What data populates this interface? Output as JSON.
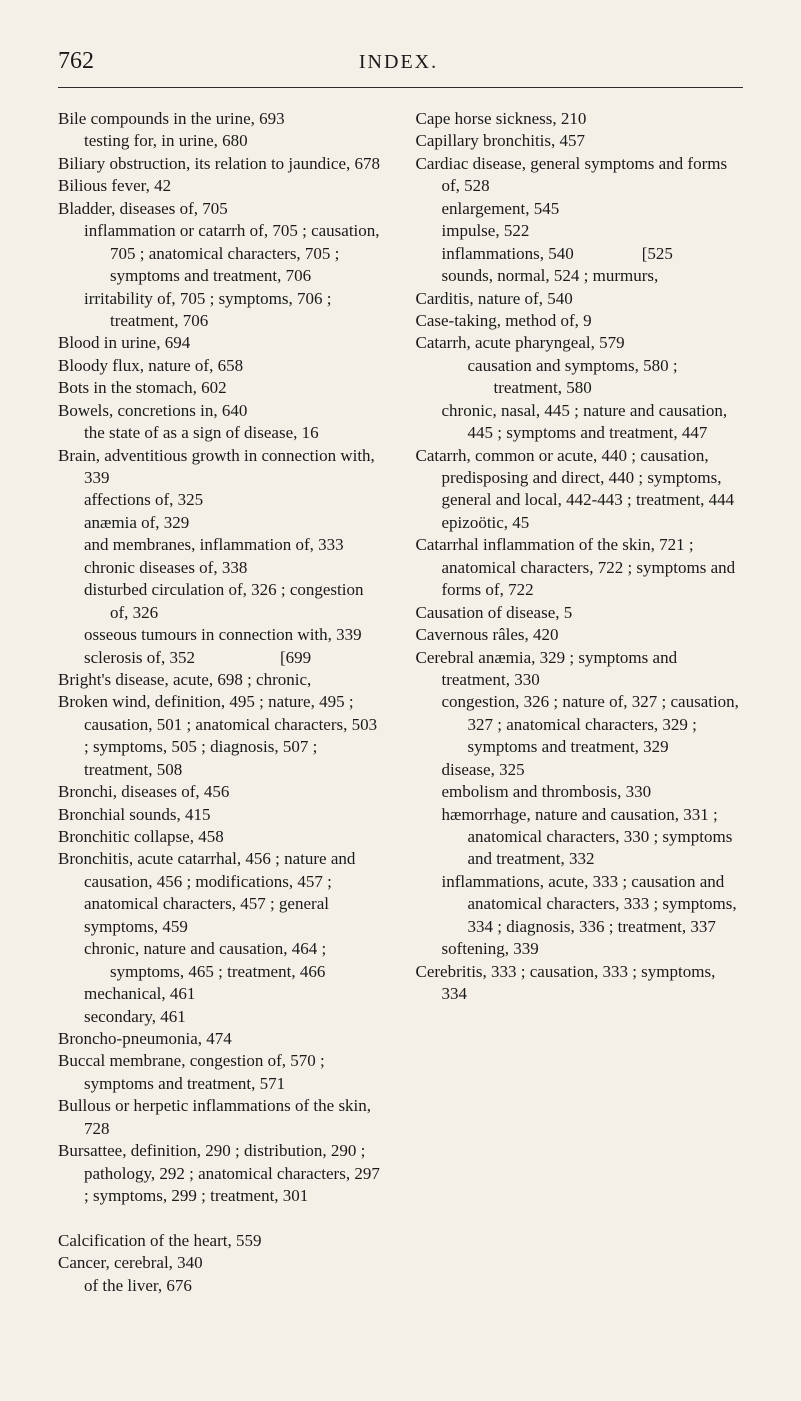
{
  "page": {
    "number": "762",
    "title": "INDEX."
  },
  "entries": [
    {
      "level": 0,
      "text": "Bile compounds in the urine, 693"
    },
    {
      "level": 1,
      "text": "testing for, in urine, 680"
    },
    {
      "level": 0,
      "text": "Biliary obstruction, its relation to jaundice, 678"
    },
    {
      "level": 0,
      "text": "Bilious fever, 42"
    },
    {
      "level": 0,
      "text": "Bladder, diseases of, 705"
    },
    {
      "level": 1,
      "text": "inflammation or catarrh of, 705 ; causation, 705 ; anatomical characters, 705 ; symptoms and treatment, 706"
    },
    {
      "level": 1,
      "text": "irritability of, 705 ; symptoms, 706 ; treatment, 706"
    },
    {
      "level": 0,
      "text": "Blood in urine, 694"
    },
    {
      "level": 0,
      "text": "Bloody flux, nature of, 658"
    },
    {
      "level": 0,
      "text": "Bots in the stomach, 602"
    },
    {
      "level": 0,
      "text": "Bowels, concretions in, 640"
    },
    {
      "level": 1,
      "text": "the state of as a sign of disease, 16"
    },
    {
      "level": 0,
      "text": "Brain, adventitious growth in connection with, 339"
    },
    {
      "level": 1,
      "text": "affections of, 325"
    },
    {
      "level": 1,
      "text": "anæmia of, 329"
    },
    {
      "level": 1,
      "text": "and membranes, inflammation of, 333"
    },
    {
      "level": 1,
      "text": "chronic diseases of, 338"
    },
    {
      "level": 1,
      "text": "disturbed circulation of, 326 ; congestion of, 326"
    },
    {
      "level": 1,
      "text": "osseous tumours in connection with, 339"
    },
    {
      "level": 1,
      "text": "sclerosis of, 352     [699"
    },
    {
      "level": 0,
      "text": "Bright's disease, acute, 698 ; chronic,"
    },
    {
      "level": 0,
      "text": "Broken wind, definition, 495 ; nature, 495 ; causation, 501 ; anatomical characters, 503 ; symptoms, 505 ; diagnosis, 507 ; treatment, 508"
    },
    {
      "level": 0,
      "text": "Bronchi, diseases of, 456"
    },
    {
      "level": 0,
      "text": "Bronchial sounds, 415"
    },
    {
      "level": 0,
      "text": "Bronchitic collapse, 458"
    },
    {
      "level": 0,
      "text": "Bronchitis, acute catarrhal, 456 ; nature and causation, 456 ; modifications, 457 ; anatomical characters, 457 ; general symptoms, 459"
    },
    {
      "level": 1,
      "text": "chronic, nature and causation, 464 ; symptoms, 465 ; treatment, 466"
    },
    {
      "level": 1,
      "text": "mechanical, 461"
    },
    {
      "level": 1,
      "text": "secondary, 461"
    },
    {
      "level": 0,
      "text": "Broncho-pneumonia, 474"
    },
    {
      "level": 0,
      "text": "Buccal membrane, congestion of, 570 ; symptoms and treatment, 571"
    },
    {
      "level": 0,
      "text": "Bullous or herpetic inflammations of the skin, 728"
    },
    {
      "level": 0,
      "text": "Bursattee, definition, 290 ; distribution, 290 ; pathology, 292 ; anatomical characters, 297 ; symptoms, 299 ; treatment, 301"
    },
    {
      "level": 0,
      "text": " "
    },
    {
      "level": 0,
      "text": "Calcification of the heart, 559"
    },
    {
      "level": 0,
      "text": "Cancer, cerebral, 340"
    },
    {
      "level": 1,
      "text": "of the liver, 676"
    },
    {
      "level": 0,
      "text": "Cape horse sickness, 210"
    },
    {
      "level": 0,
      "text": "Capillary bronchitis, 457"
    },
    {
      "level": 0,
      "text": "Cardiac disease, general symptoms and forms of, 528"
    },
    {
      "level": 1,
      "text": "enlargement, 545"
    },
    {
      "level": 1,
      "text": "impulse, 522"
    },
    {
      "level": 1,
      "text": "inflammations, 540    [525"
    },
    {
      "level": 1,
      "text": "sounds, normal, 524 ; murmurs,"
    },
    {
      "level": 0,
      "text": "Carditis, nature of, 540"
    },
    {
      "level": 0,
      "text": "Case-taking, method of, 9"
    },
    {
      "level": 0,
      "text": "Catarrh, acute pharyngeal, 579"
    },
    {
      "level": 2,
      "text": "causation and symptoms, 580 ; treatment, 580"
    },
    {
      "level": 1,
      "text": "chronic, nasal, 445 ; nature and causation, 445 ; symptoms and treatment, 447"
    },
    {
      "level": 0,
      "text": "Catarrh, common or acute, 440 ; causation, predisposing and direct, 440 ; symptoms, general and local, 442-443 ; treatment, 444"
    },
    {
      "level": 1,
      "text": "epizoötic, 45"
    },
    {
      "level": 0,
      "text": "Catarrhal inflammation of the skin, 721 ; anatomical characters, 722 ; symptoms and forms of, 722"
    },
    {
      "level": 0,
      "text": "Causation of disease, 5"
    },
    {
      "level": 0,
      "text": "Cavernous râles, 420"
    },
    {
      "level": 0,
      "text": "Cerebral anæmia, 329 ; symptoms and treatment, 330"
    },
    {
      "level": 1,
      "text": "congestion, 326 ; nature of, 327 ; causation, 327 ; anatomical characters, 329 ; symptoms and treatment, 329"
    },
    {
      "level": 1,
      "text": "disease, 325"
    },
    {
      "level": 1,
      "text": "embolism and thrombosis, 330"
    },
    {
      "level": 1,
      "text": "hæmorrhage, nature and causation, 331 ; anatomical characters, 330 ; symptoms and treatment, 332"
    },
    {
      "level": 1,
      "text": "inflammations, acute, 333 ; causation and anatomical characters, 333 ; symptoms, 334 ; diagnosis, 336 ; treatment, 337"
    },
    {
      "level": 1,
      "text": "softening, 339"
    },
    {
      "level": 0,
      "text": "Cerebritis, 333 ; causation, 333 ; symptoms, 334"
    }
  ]
}
